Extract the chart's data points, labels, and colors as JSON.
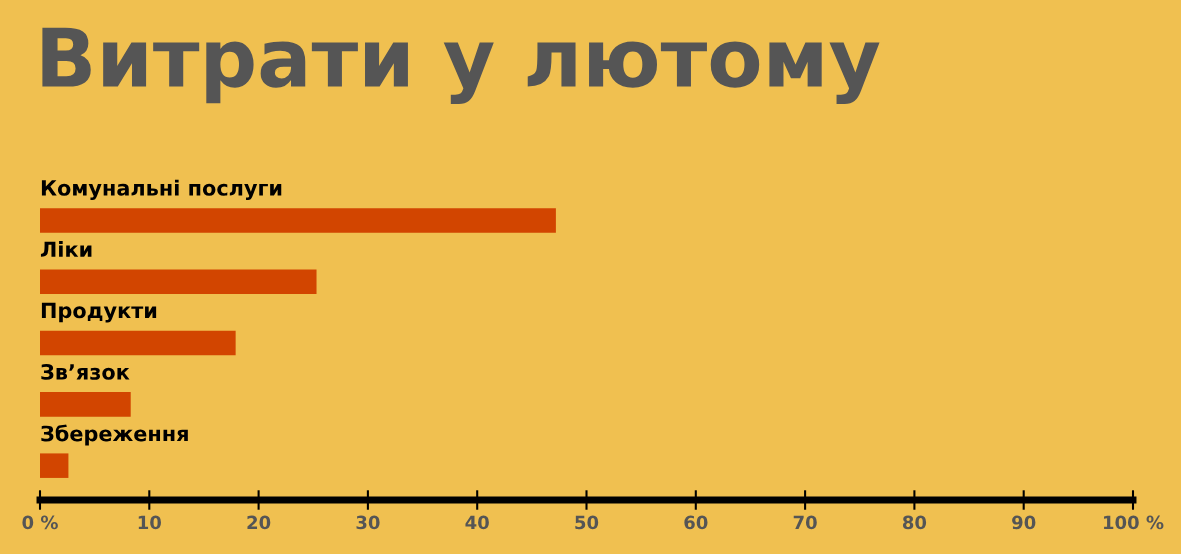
{
  "chart_data": {
    "type": "bar",
    "orientation": "horizontal",
    "title": "Витрати у лютому",
    "categories": [
      "Комунальні послуги",
      "Ліки",
      "Продукти",
      "Зв’язок",
      "Збереження"
    ],
    "values": [
      47.2,
      25.3,
      17.9,
      8.3,
      2.6
    ],
    "color": "#d24500",
    "xlim": [
      0,
      100
    ],
    "xticks": [
      {
        "value": 0,
        "label": "0 %"
      },
      10,
      20,
      30,
      40,
      50,
      60,
      70,
      80,
      90,
      {
        "value": 100,
        "label": "100 %"
      }
    ],
    "grid": false,
    "legend": false
  }
}
